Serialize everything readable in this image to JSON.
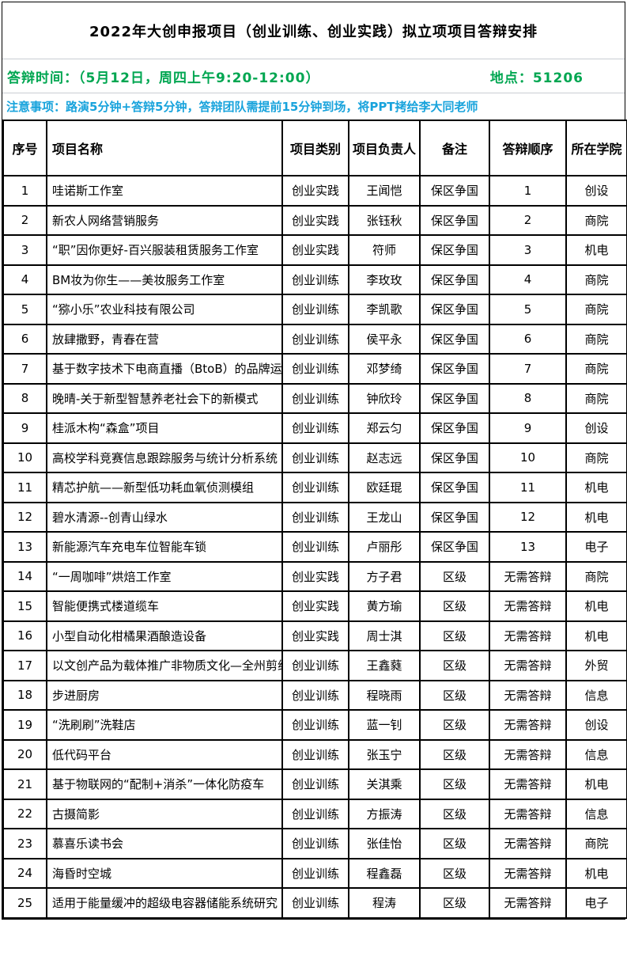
{
  "title": "2022年大创申报项目（创业训练、创业实践）拟立项项目答辩安排",
  "info": {
    "time_label": "答辩时间：（5月12日，周四上午9:20-12:00）",
    "location_label": "地点：51206",
    "notice": "注意事项：路演5分钟+答辩5分钟，答辩团队需提前15分钟到场，将PPT拷给李大同老师"
  },
  "colors": {
    "time_text": "#00A651",
    "notice_text": "#18A3DC",
    "grid_border": "#000000"
  },
  "table": {
    "headers": [
      "序号",
      "项目名称",
      "项目类别",
      "项目负责人",
      "备注",
      "答辩顺序",
      "所在学院"
    ],
    "rows": [
      [
        "1",
        "哇诺斯工作室",
        "创业实践",
        "王闻恺",
        "保区争国",
        "1",
        "创设"
      ],
      [
        "2",
        "新农人网络营销服务",
        "创业实践",
        "张钰秋",
        "保区争国",
        "2",
        "商院"
      ],
      [
        "3",
        "“职”因你更好-百兴服装租赁服务工作室",
        "创业实践",
        "符师",
        "保区争国",
        "3",
        "机电"
      ],
      [
        "4",
        "BM妆为你生——美妆服务工作室",
        "创业训练",
        "李玫玫",
        "保区争国",
        "4",
        "商院"
      ],
      [
        "5",
        "“猕小乐”农业科技有限公司",
        "创业训练",
        "李凯歌",
        "保区争国",
        "5",
        "商院"
      ],
      [
        "6",
        "放肆撒野，青春在营",
        "创业训练",
        "侯平永",
        "保区争国",
        "6",
        "商院"
      ],
      [
        "7",
        "基于数字技术下电商直播（BtoB）的品牌运营",
        "创业训练",
        "邓梦绮",
        "保区争国",
        "7",
        "商院"
      ],
      [
        "8",
        "晚晴-关于新型智慧养老社会下的新模式",
        "创业训练",
        "钟欣玲",
        "保区争国",
        "8",
        "商院"
      ],
      [
        "9",
        "桂派木构“森盒”项目",
        "创业训练",
        "郑云匀",
        "保区争国",
        "9",
        "创设"
      ],
      [
        "10",
        "高校学科竞赛信息跟踪服务与统计分析系统",
        "创业训练",
        "赵志远",
        "保区争国",
        "10",
        "商院"
      ],
      [
        "11",
        "精芯护航——新型低功耗血氧侦测模组",
        "创业训练",
        "欧廷琨",
        "保区争国",
        "11",
        "机电"
      ],
      [
        "12",
        "碧水清源--创青山绿水",
        "创业训练",
        "王龙山",
        "保区争国",
        "12",
        "机电"
      ],
      [
        "13",
        "新能源汽车充电车位智能车锁",
        "创业训练",
        "卢丽彤",
        "保区争国",
        "13",
        "电子"
      ],
      [
        "14",
        "“一周咖啡”烘焙工作室",
        "创业实践",
        "方子君",
        "区级",
        "无需答辩",
        "商院"
      ],
      [
        "15",
        "智能便携式楼道缆车",
        "创业实践",
        "黄方瑜",
        "区级",
        "无需答辩",
        "机电"
      ],
      [
        "16",
        "小型自动化柑橘果酒酿造设备",
        "创业实践",
        "周士淇",
        "区级",
        "无需答辩",
        "机电"
      ],
      [
        "17",
        "以文创产品为载体推广非物质文化—全州剪纸",
        "创业训练",
        "王鑫蕤",
        "区级",
        "无需答辩",
        "外贸"
      ],
      [
        "18",
        "步进厨房",
        "创业训练",
        "程晓雨",
        "区级",
        "无需答辩",
        "信息"
      ],
      [
        "19",
        "“洗刷刷”洗鞋店",
        "创业训练",
        "蓝一钊",
        "区级",
        "无需答辩",
        "创设"
      ],
      [
        "20",
        "低代码平台",
        "创业训练",
        "张玉宁",
        "区级",
        "无需答辩",
        "信息"
      ],
      [
        "21",
        "基于物联网的“配制+消杀”一体化防疫车",
        "创业训练",
        "关淇乘",
        "区级",
        "无需答辩",
        "机电"
      ],
      [
        "22",
        "古摄简影",
        "创业训练",
        "方振涛",
        "区级",
        "无需答辩",
        "信息"
      ],
      [
        "23",
        "慕喜乐读书会",
        "创业训练",
        "张佳怡",
        "区级",
        "无需答辩",
        "商院"
      ],
      [
        "24",
        "海昏时空城",
        "创业训练",
        "程鑫磊",
        "区级",
        "无需答辩",
        "机电"
      ],
      [
        "25",
        "适用于能量缓冲的超级电容器储能系统研究",
        "创业训练",
        "程涛",
        "区级",
        "无需答辩",
        "电子"
      ]
    ]
  }
}
